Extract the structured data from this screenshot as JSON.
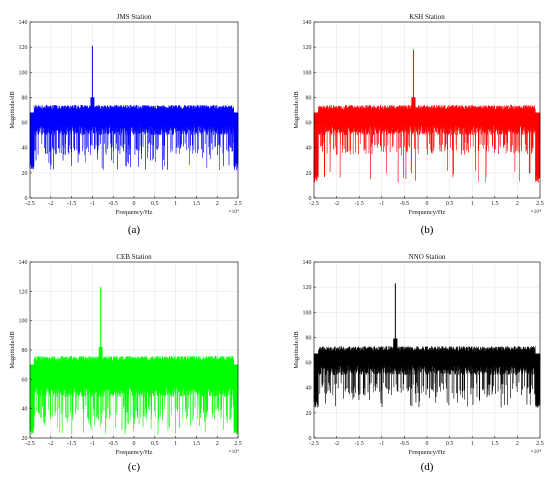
{
  "figure": {
    "panels_order": [
      "a",
      "b",
      "c",
      "d"
    ]
  },
  "chart_data": [
    {
      "id": "a",
      "type": "line",
      "title": "JMS Station",
      "xlabel": "Frequency/Hz",
      "ylabel": "Magnitude/dB",
      "caption": "(a)",
      "color": "#0000ff",
      "xlim": [
        -2.5,
        2.5
      ],
      "x_multiplier": "×10⁴",
      "ylim": [
        0,
        140
      ],
      "xticks": [
        "-2.5",
        "-2",
        "-1.5",
        "-1",
        "-0.5",
        "0",
        "0.5",
        "1",
        "1.5",
        "2",
        "2.5"
      ],
      "yticks": [
        "0",
        "20",
        "40",
        "60",
        "80",
        "100",
        "120",
        "140"
      ],
      "grid": true,
      "spectrum": {
        "band": [
          -2.5,
          2.5
        ],
        "mean": 64,
        "upper": 74,
        "lower_typical": 50,
        "lower_min": 22,
        "edge_low": 22,
        "peak_x": -1.0,
        "peak_y": 121
      }
    },
    {
      "id": "b",
      "type": "line",
      "title": "KSH Station",
      "xlabel": "Frequency/Hz",
      "ylabel": "Magnitude/dB",
      "caption": "(b)",
      "color": "#ff0000",
      "xlim": [
        -2.5,
        2.5
      ],
      "x_multiplier": "×10⁴",
      "ylim": [
        0,
        140
      ],
      "xticks": [
        "-2.5",
        "-2",
        "-1.5",
        "-1",
        "-0.5",
        "0",
        "0.5",
        "1",
        "1.5",
        "2",
        "2.5"
      ],
      "yticks": [
        "0",
        "20",
        "40",
        "60",
        "80",
        "100",
        "120",
        "140"
      ],
      "grid": true,
      "spectrum": {
        "band": [
          -2.5,
          2.5
        ],
        "mean": 64,
        "upper": 74,
        "lower_typical": 50,
        "lower_min": 12,
        "edge_low": 12,
        "peak_x": -0.3,
        "peak_y": 118
      }
    },
    {
      "id": "c",
      "type": "line",
      "title": "CEB Station",
      "xlabel": "Frequency/Hz",
      "ylabel": "Magnitude/dB",
      "caption": "(c)",
      "color": "#00ff00",
      "xlim": [
        -2.5,
        2.5
      ],
      "x_multiplier": "×10⁴",
      "ylim": [
        20,
        140
      ],
      "xticks": [
        "-2.5",
        "-2",
        "-1.5",
        "-1",
        "-0.5",
        "0",
        "0.5",
        "1",
        "1.5",
        "2",
        "2.5"
      ],
      "yticks": [
        "20",
        "40",
        "60",
        "80",
        "100",
        "120",
        "140"
      ],
      "grid": true,
      "spectrum": {
        "band": [
          -2.5,
          2.5
        ],
        "mean": 64,
        "upper": 76,
        "lower_typical": 48,
        "lower_min": 22,
        "edge_low": 22,
        "peak_x": -0.8,
        "peak_y": 123
      }
    },
    {
      "id": "d",
      "type": "line",
      "title": "NNO Station",
      "xlabel": "Frequency/Hz",
      "ylabel": "Magnitude/dB",
      "caption": "(d)",
      "color": "#000000",
      "xlim": [
        -2.5,
        2.5
      ],
      "x_multiplier": "×10⁴",
      "ylim": [
        0,
        140
      ],
      "xticks": [
        "-2.5",
        "-2",
        "-1.5",
        "-1",
        "-0.5",
        "0",
        "0.5",
        "1",
        "1.5",
        "2",
        "2.5"
      ],
      "yticks": [
        "0",
        "20",
        "40",
        "60",
        "80",
        "100",
        "120",
        "140"
      ],
      "grid": true,
      "spectrum": {
        "band": [
          -2.5,
          2.5
        ],
        "mean": 62,
        "upper": 73,
        "lower_typical": 50,
        "lower_min": 24,
        "edge_low": 24,
        "peak_x": -0.7,
        "peak_y": 123
      }
    }
  ]
}
